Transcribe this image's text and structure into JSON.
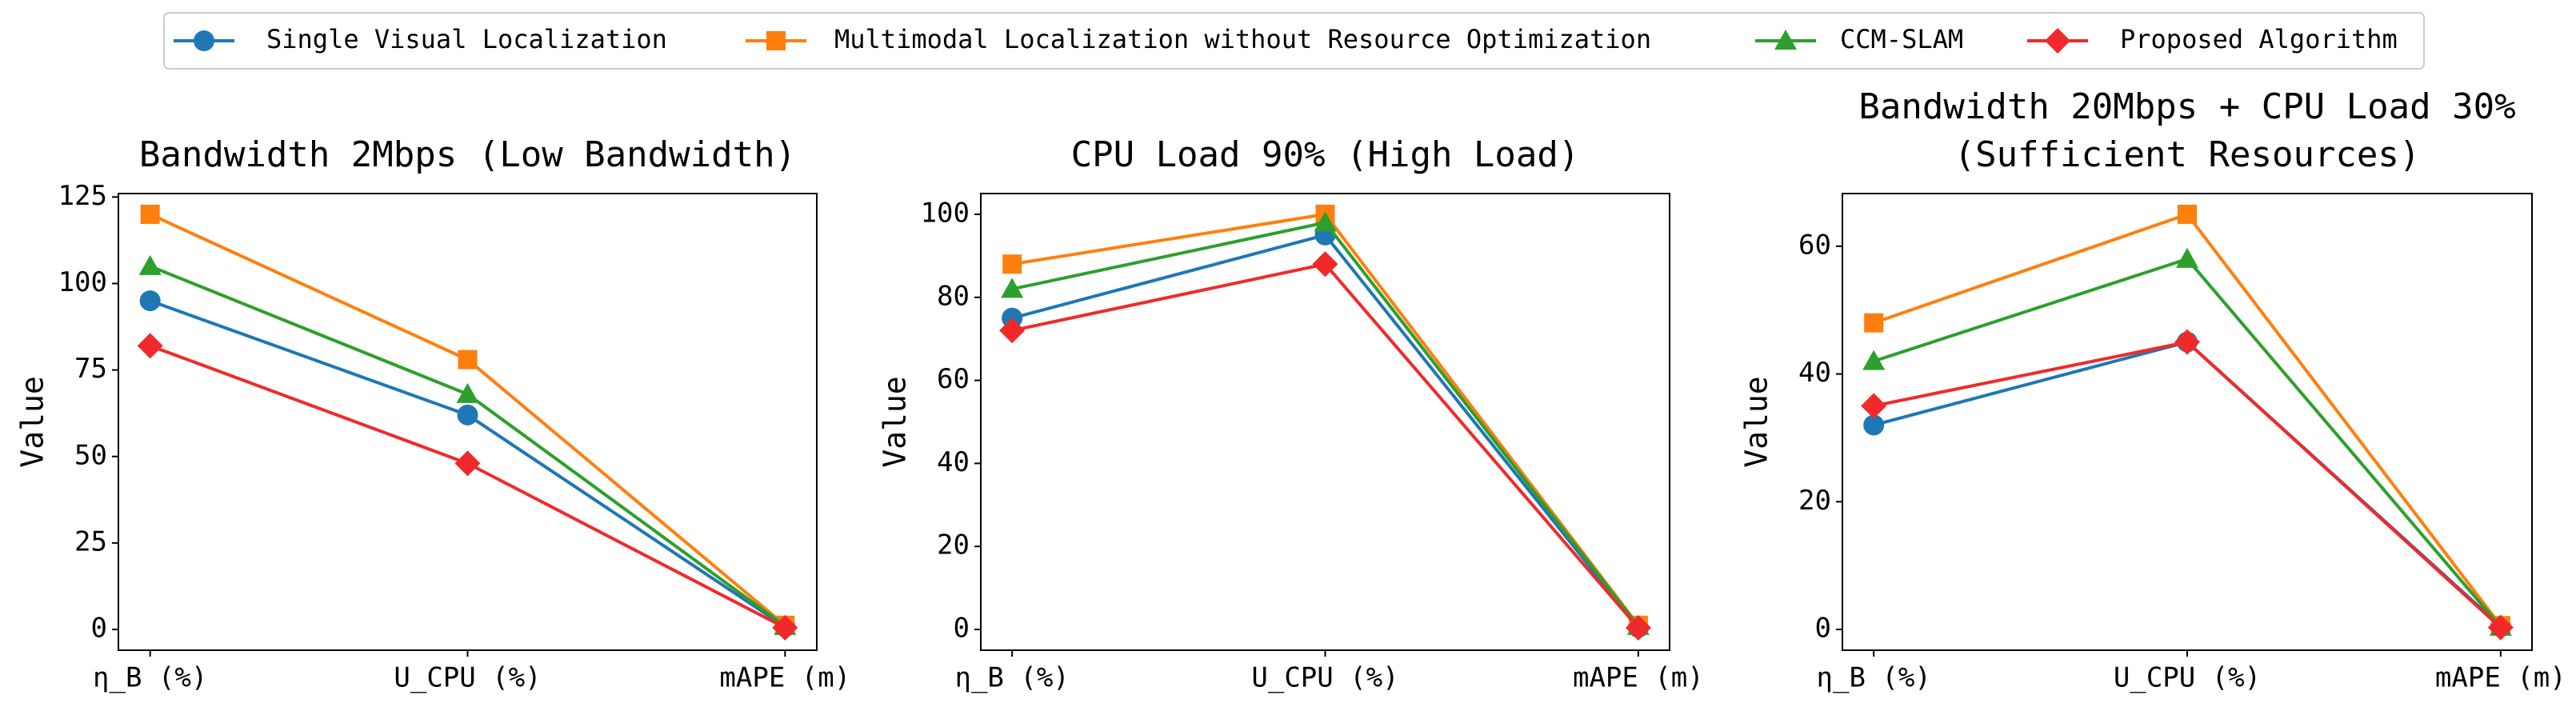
{
  "chart_data": [
    {
      "type": "line",
      "title": "Bandwidth 2Mbps (Low Bandwidth)",
      "ylabel": "Value",
      "categories": [
        "η_B (%)",
        "U_CPU (%)",
        "mAPE (m)"
      ],
      "ylim": [
        -6,
        126
      ],
      "yticks": [
        0,
        25,
        50,
        75,
        100,
        125
      ],
      "series": [
        {
          "name": "Single Visual Localization",
          "color": "#1f77b4",
          "marker": "circle",
          "values": [
            95,
            62,
            0.8
          ]
        },
        {
          "name": "Multimodal Localization without Resource Optimization",
          "color": "#ff7f0e",
          "marker": "square",
          "values": [
            120,
            78,
            1.2
          ]
        },
        {
          "name": "CCM-SLAM",
          "color": "#2ca02c",
          "marker": "triangle",
          "values": [
            105,
            68,
            1.0
          ]
        },
        {
          "name": "Proposed Algorithm",
          "color": "#f02a2a",
          "marker": "diamond",
          "values": [
            82,
            48,
            0.5
          ]
        }
      ]
    },
    {
      "type": "line",
      "title": "CPU Load 90% (High Load)",
      "ylabel": "Value",
      "categories": [
        "η_B (%)",
        "U_CPU (%)",
        "mAPE (m)"
      ],
      "ylim": [
        -5,
        105
      ],
      "yticks": [
        0,
        20,
        40,
        60,
        80,
        100
      ],
      "series": [
        {
          "name": "Single Visual Localization",
          "color": "#1f77b4",
          "marker": "circle",
          "values": [
            75,
            95,
            0.5
          ]
        },
        {
          "name": "Multimodal Localization without Resource Optimization",
          "color": "#ff7f0e",
          "marker": "square",
          "values": [
            88,
            100,
            1.0
          ]
        },
        {
          "name": "CCM-SLAM",
          "color": "#2ca02c",
          "marker": "triangle",
          "values": [
            82,
            98,
            0.8
          ]
        },
        {
          "name": "Proposed Algorithm",
          "color": "#f02a2a",
          "marker": "diamond",
          "values": [
            72,
            88,
            0.4
          ]
        }
      ]
    },
    {
      "type": "line",
      "title": "Bandwidth 20Mbps + CPU Load 30%\n(Sufficient Resources)",
      "ylabel": "Value",
      "categories": [
        "η_B (%)",
        "U_CPU (%)",
        "mAPE (m)"
      ],
      "ylim": [
        -3.25,
        68.25
      ],
      "yticks": [
        0,
        20,
        40,
        60
      ],
      "series": [
        {
          "name": "Single Visual Localization",
          "color": "#1f77b4",
          "marker": "circle",
          "values": [
            32,
            45,
            0.5
          ]
        },
        {
          "name": "Multimodal Localization without Resource Optimization",
          "color": "#ff7f0e",
          "marker": "square",
          "values": [
            48,
            65,
            0.6
          ]
        },
        {
          "name": "CCM-SLAM",
          "color": "#2ca02c",
          "marker": "triangle",
          "values": [
            42,
            58,
            0.4
          ]
        },
        {
          "name": "Proposed Algorithm",
          "color": "#f02a2a",
          "marker": "diamond",
          "values": [
            35,
            45,
            0.3
          ]
        }
      ]
    }
  ]
}
